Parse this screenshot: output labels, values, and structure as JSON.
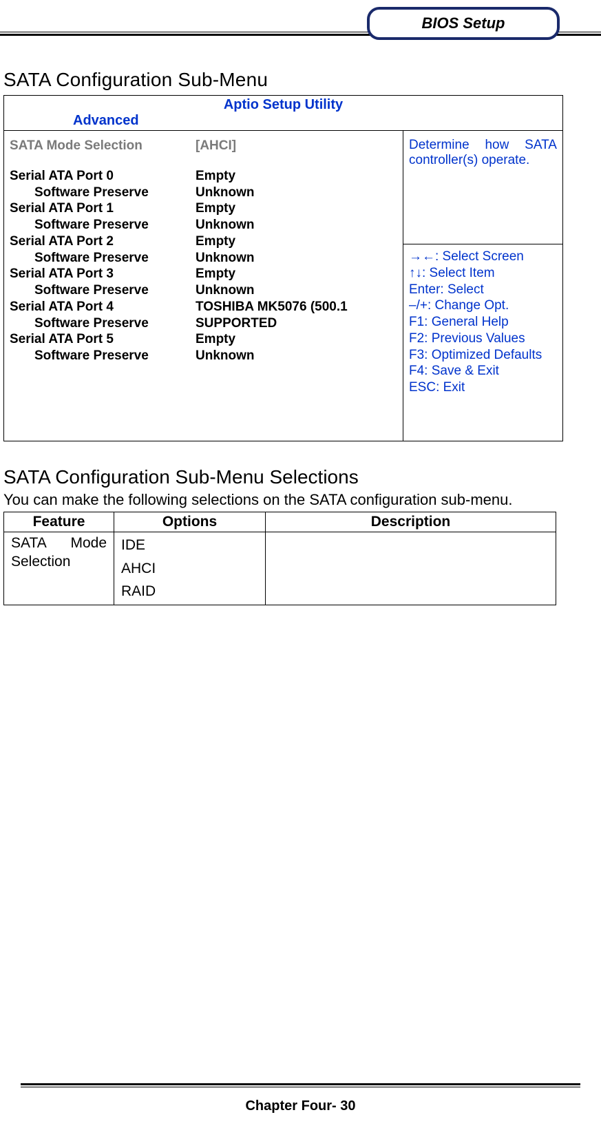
{
  "header": {
    "label": "BIOS Setup"
  },
  "section1": {
    "title": "SATA Configuration Sub-Menu"
  },
  "bios": {
    "utility_title": "Aptio Setup Utility",
    "tab": "Advanced",
    "mode_row": {
      "label": "SATA Mode Selection",
      "value": "[AHCI]"
    },
    "rows": [
      {
        "label": "Serial ATA Port 0",
        "indent": false,
        "value": "Empty"
      },
      {
        "label": "Software Preserve",
        "indent": true,
        "value": "Unknown"
      },
      {
        "label": "Serial ATA Port 1",
        "indent": false,
        "value": "Empty"
      },
      {
        "label": "Software Preserve",
        "indent": true,
        "value": "Unknown"
      },
      {
        "label": "Serial ATA Port 2",
        "indent": false,
        "value": "Empty"
      },
      {
        "label": "Software Preserve",
        "indent": true,
        "value": "Unknown"
      },
      {
        "label": "Serial ATA Port 3",
        "indent": false,
        "value": "Empty"
      },
      {
        "label": "Software Preserve",
        "indent": true,
        "value": "Unknown"
      },
      {
        "label": "Serial ATA Port 4",
        "indent": false,
        "value": "TOSHIBA MK5076 (500.1"
      },
      {
        "label": "Software Preserve",
        "indent": true,
        "value": "SUPPORTED"
      },
      {
        "label": "Serial ATA Port 5",
        "indent": false,
        "value": "Empty"
      },
      {
        "label": "Software Preserve",
        "indent": true,
        "value": "Unknown"
      }
    ],
    "help_top": "Determine how SATA controller(s) operate.",
    "help_keys": [
      "→←: Select Screen",
      "↑↓: Select Item",
      "Enter: Select",
      "–/+: Change Opt.",
      "F1: General Help",
      "F2: Previous Values",
      "F3: Optimized Defaults",
      "F4: Save & Exit",
      "ESC: Exit"
    ],
    "colors": {
      "accent": "#0033cc",
      "gray": "#7a7a7a",
      "border": "#000000",
      "header_border": "#1a2a6b"
    }
  },
  "section2": {
    "title": "SATA Configuration Sub-Menu Selections",
    "intro": "You can make the following selections on the SATA configuration sub-menu.",
    "headers": {
      "feature": "Feature",
      "options": "Options",
      "description": "Description"
    },
    "row": {
      "feature_l1": "SATA",
      "feature_l2": "Mode",
      "feature_l3": "Selection",
      "options": [
        "IDE",
        "AHCI",
        "RAID"
      ],
      "description": ""
    }
  },
  "footer": {
    "text": "Chapter Four- 30"
  }
}
